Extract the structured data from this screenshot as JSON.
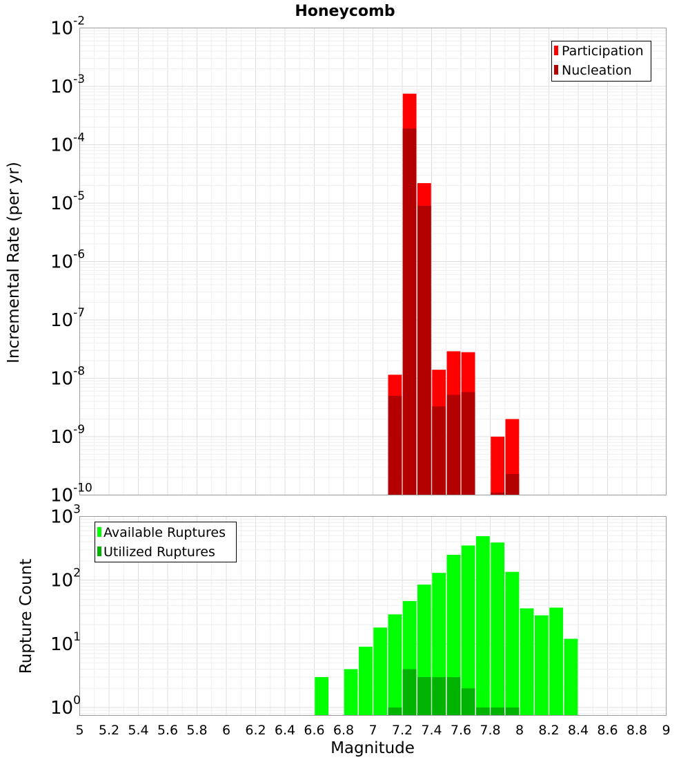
{
  "title": "Honeycomb",
  "xlabel": "Magnitude",
  "x_ticks": [
    "5",
    "5.2",
    "5.4",
    "5.6",
    "5.8",
    "6",
    "6.2",
    "6.4",
    "6.6",
    "6.8",
    "7",
    "7.2",
    "7.4",
    "7.6",
    "7.8",
    "8",
    "8.2",
    "8.4",
    "8.6",
    "8.8",
    "9"
  ],
  "colors": {
    "participation": "#ff0000",
    "nucleation": "#b30000",
    "available": "#00ff00",
    "utilized": "#00b300"
  },
  "chart_data": [
    {
      "type": "bar",
      "ylabel": "Incremental Rate (per yr)",
      "yscale": "log",
      "xlim": [
        5,
        9
      ],
      "ylim": [
        1e-10,
        0.01
      ],
      "y_tick_exponents": [
        "-2",
        "-3",
        "-4",
        "-5",
        "-6",
        "-7",
        "-8",
        "-9",
        "-10"
      ],
      "legend_position": "top-right",
      "grid": true,
      "series": [
        {
          "name": "Participation",
          "x": [
            7.15,
            7.25,
            7.35,
            7.45,
            7.55,
            7.65,
            7.85,
            7.95
          ],
          "values": [
            1.15e-08,
            0.00075,
            2.2e-05,
            1.4e-08,
            2.9e-08,
            2.8e-08,
            1e-09,
            2e-09
          ]
        },
        {
          "name": "Nucleation",
          "x": [
            7.15,
            7.25,
            7.35,
            7.45,
            7.55,
            7.65,
            7.85,
            7.95
          ],
          "values": [
            5e-09,
            0.00019,
            9e-06,
            3.3e-09,
            5.2e-09,
            5.8e-09,
            1.1e-10,
            2.3e-10
          ]
        }
      ]
    },
    {
      "type": "bar",
      "ylabel": "Rupture Count",
      "yscale": "log",
      "xlim": [
        5,
        9
      ],
      "ylim": [
        0.75,
        1000
      ],
      "y_tick_exponents": [
        "3",
        "2",
        "1",
        "0"
      ],
      "legend_position": "top-left",
      "grid": true,
      "series": [
        {
          "name": "Available Ruptures",
          "x": [
            6.65,
            6.85,
            6.95,
            7.05,
            7.15,
            7.25,
            7.35,
            7.45,
            7.55,
            7.65,
            7.75,
            7.85,
            7.95,
            8.05,
            8.15,
            8.25,
            8.35
          ],
          "values": [
            3,
            4,
            9,
            18,
            29,
            47,
            85,
            130,
            250,
            350,
            490,
            390,
            135,
            36,
            28,
            37,
            12
          ]
        },
        {
          "name": "Utilized Ruptures",
          "x": [
            7.15,
            7.25,
            7.35,
            7.45,
            7.55,
            7.65,
            7.75,
            7.85,
            7.95
          ],
          "values": [
            1,
            4,
            3,
            3,
            3,
            2,
            1,
            1,
            1
          ]
        }
      ]
    }
  ]
}
